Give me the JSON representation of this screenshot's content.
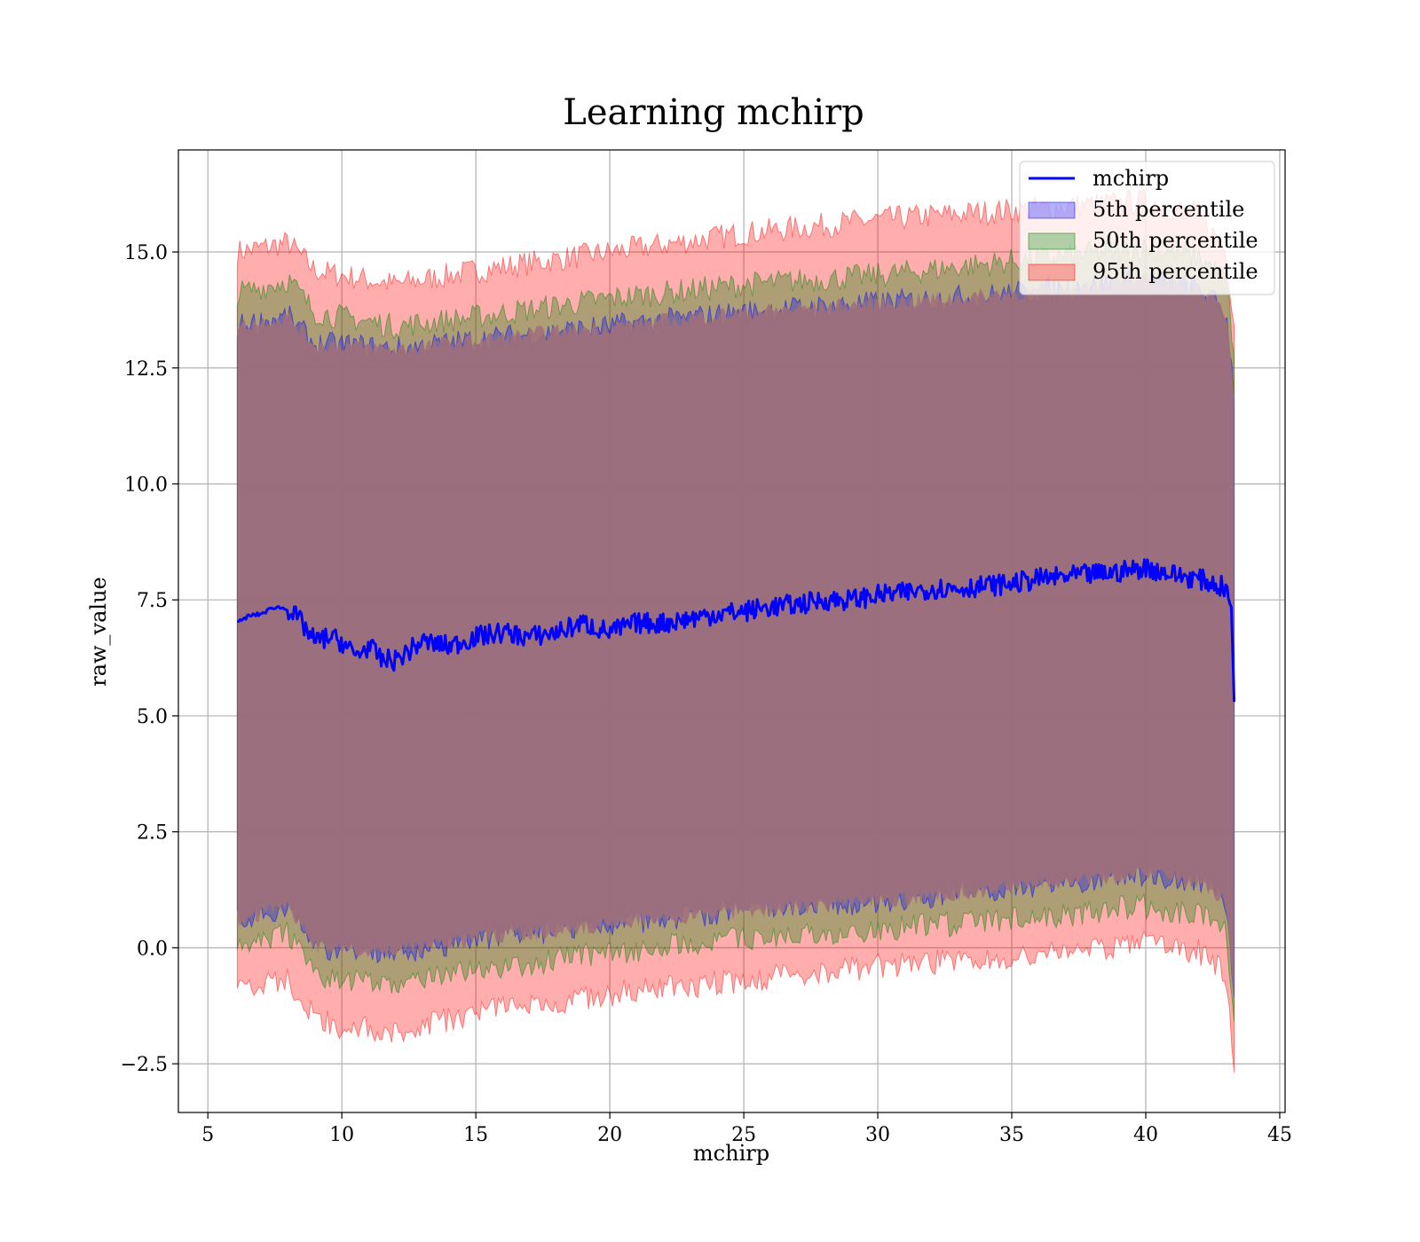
{
  "chart_data": {
    "type": "area",
    "title": "Learning mchirp",
    "xlabel": "mchirp",
    "ylabel": "raw_value",
    "xlim": [
      3.9,
      45.2
    ],
    "ylim": [
      -3.55,
      17.2
    ],
    "xticks": [
      5,
      10,
      15,
      20,
      25,
      30,
      35,
      40,
      45
    ],
    "xtick_labels": [
      "5",
      "10",
      "15",
      "20",
      "25",
      "30",
      "35",
      "40",
      "45"
    ],
    "yticks": [
      -2.5,
      0.0,
      2.5,
      5.0,
      7.5,
      10.0,
      12.5,
      15.0
    ],
    "ytick_labels": [
      "−2.5",
      "0.0",
      "2.5",
      "5.0",
      "7.5",
      "10.0",
      "12.5",
      "15.0"
    ],
    "grid": true,
    "legend_position": "top-right",
    "colors": {
      "line": "#0000ff",
      "p5": "#0000ff",
      "p50": "#008000",
      "p95": "#ff0000",
      "dark_core": "#a0707a"
    },
    "series": [
      {
        "name": "mchirp",
        "kind": "line",
        "x": [
          6.1,
          6.5,
          7.0,
          7.5,
          8.0,
          8.5,
          9.0,
          9.5,
          10.0,
          10.5,
          11.0,
          11.5,
          12.0,
          12.5,
          13.0,
          14.0,
          15.0,
          16.0,
          17.0,
          18.0,
          19.0,
          20.0,
          21.0,
          22.0,
          23.0,
          24.0,
          25.0,
          26.0,
          27.0,
          28.0,
          29.0,
          30.0,
          31.0,
          32.0,
          33.0,
          34.0,
          35.0,
          36.0,
          37.0,
          38.0,
          39.0,
          40.0,
          41.0,
          42.0,
          42.5,
          43.0,
          43.2,
          43.3
        ],
        "y": [
          7.0,
          7.15,
          7.2,
          7.35,
          7.3,
          7.0,
          6.6,
          6.7,
          6.6,
          6.3,
          6.5,
          6.2,
          6.2,
          6.4,
          6.6,
          6.5,
          6.7,
          6.8,
          6.7,
          6.8,
          7.0,
          6.8,
          7.0,
          7.0,
          7.1,
          7.2,
          7.25,
          7.35,
          7.4,
          7.5,
          7.5,
          7.6,
          7.65,
          7.75,
          7.75,
          7.8,
          7.85,
          7.95,
          8.0,
          8.05,
          8.1,
          8.2,
          8.05,
          7.95,
          7.85,
          7.75,
          7.3,
          5.3
        ]
      },
      {
        "name": "5th percentile",
        "kind": "band",
        "x": [
          6.1,
          8.0,
          9.0,
          10.0,
          12.0,
          15.0,
          20.0,
          25.0,
          30.0,
          35.0,
          40.0,
          42.0,
          43.0,
          43.3
        ],
        "upper": [
          13.4,
          13.6,
          13.0,
          13.0,
          12.9,
          13.1,
          13.4,
          13.7,
          13.9,
          14.1,
          14.4,
          14.2,
          13.7,
          12.0
        ],
        "lower": [
          0.6,
          0.9,
          0.0,
          0.0,
          -0.1,
          0.2,
          0.5,
          0.8,
          1.0,
          1.3,
          1.6,
          1.4,
          1.0,
          -1.0
        ]
      },
      {
        "name": "50th percentile",
        "kind": "band",
        "x": [
          6.1,
          8.0,
          9.0,
          10.0,
          12.0,
          15.0,
          20.0,
          25.0,
          30.0,
          35.0,
          40.0,
          42.0,
          43.0,
          43.3
        ],
        "upper": [
          14.1,
          14.4,
          13.7,
          13.6,
          13.4,
          13.6,
          14.0,
          14.3,
          14.5,
          14.8,
          15.1,
          14.9,
          14.4,
          12.8
        ],
        "lower": [
          -0.05,
          0.3,
          -0.6,
          -0.7,
          -0.8,
          -0.5,
          -0.1,
          0.2,
          0.4,
          0.6,
          0.9,
          0.7,
          0.4,
          -1.8
        ]
      },
      {
        "name": "95th percentile",
        "kind": "band",
        "x": [
          6.1,
          8.0,
          9.0,
          10.0,
          12.0,
          15.0,
          20.0,
          25.0,
          30.0,
          35.0,
          40.0,
          42.0,
          43.0,
          43.3
        ],
        "upper": [
          15.0,
          15.2,
          14.6,
          14.5,
          14.3,
          14.6,
          15.0,
          15.4,
          15.7,
          15.9,
          16.1,
          15.8,
          15.0,
          13.5
        ],
        "lower": [
          -0.9,
          -0.7,
          -1.5,
          -1.7,
          -1.8,
          -1.4,
          -1.0,
          -0.7,
          -0.4,
          -0.2,
          0.1,
          -0.1,
          -0.5,
          -2.6
        ]
      }
    ]
  }
}
